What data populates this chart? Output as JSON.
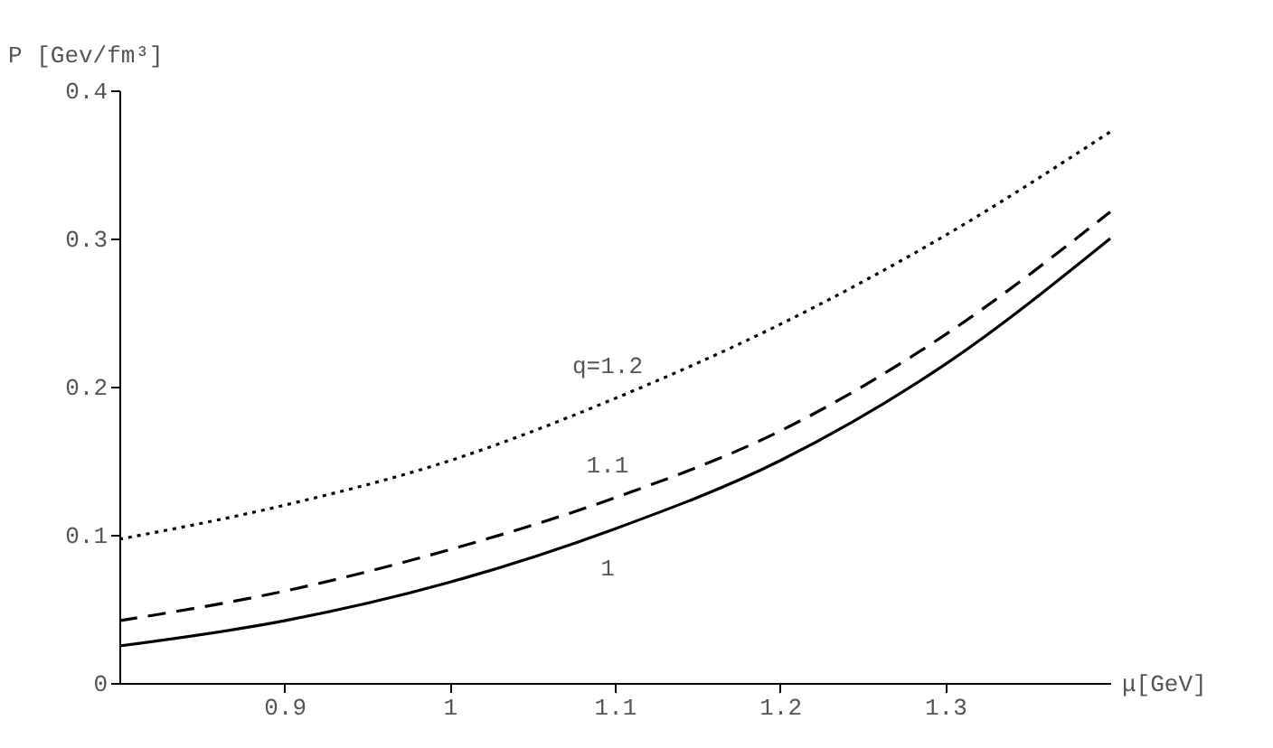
{
  "chart_data": {
    "type": "line",
    "xlabel": "μ[GeV]",
    "ylabel": "P [Gev/fm³]",
    "x": [
      0.8,
      0.9,
      1.0,
      1.1,
      1.2,
      1.3,
      1.4
    ],
    "xlim": [
      0.8,
      1.4
    ],
    "xticks": [
      0.9,
      1,
      1.1,
      1.2,
      1.3
    ],
    "ylim": [
      0,
      0.4
    ],
    "yticks": [
      0,
      0.1,
      0.2,
      0.3,
      0.4
    ],
    "series": [
      {
        "name": "q=1.2",
        "color": "#000000",
        "line_style": "dotted",
        "values": [
          0.097,
          0.12,
          0.15,
          0.192,
          0.242,
          0.302,
          0.372
        ]
      },
      {
        "name": "1.1",
        "color": "#000000",
        "line_style": "dashed",
        "values": [
          0.042,
          0.062,
          0.09,
          0.125,
          0.17,
          0.235,
          0.318
        ]
      },
      {
        "name": "1",
        "color": "#000000",
        "line_style": "solid",
        "values": [
          0.025,
          0.042,
          0.068,
          0.104,
          0.15,
          0.215,
          0.3
        ]
      }
    ]
  }
}
